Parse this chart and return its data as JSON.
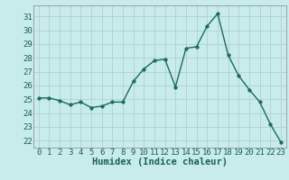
{
  "x": [
    0,
    1,
    2,
    3,
    4,
    5,
    6,
    7,
    8,
    9,
    10,
    11,
    12,
    13,
    14,
    15,
    16,
    17,
    18,
    19,
    20,
    21,
    22,
    23
  ],
  "y": [
    25.1,
    25.1,
    24.9,
    24.6,
    24.8,
    24.4,
    24.5,
    24.8,
    24.8,
    26.3,
    27.2,
    27.8,
    27.9,
    25.9,
    28.7,
    28.8,
    30.3,
    31.2,
    28.2,
    26.7,
    25.7,
    24.8,
    23.2,
    21.9
  ],
  "line_color": "#1a6b5a",
  "marker_color": "#1a6b5a",
  "bg_color": "#c8ebeb",
  "grid_color": "#b0d0d0",
  "xlabel": "Humidex (Indice chaleur)",
  "ylabel_ticks": [
    22,
    23,
    24,
    25,
    26,
    27,
    28,
    29,
    30,
    31
  ],
  "ylim": [
    21.5,
    31.8
  ],
  "xlim": [
    -0.5,
    23.5
  ],
  "xticks": [
    0,
    1,
    2,
    3,
    4,
    5,
    6,
    7,
    8,
    9,
    10,
    11,
    12,
    13,
    14,
    15,
    16,
    17,
    18,
    19,
    20,
    21,
    22,
    23
  ],
  "xlabel_fontsize": 7.5,
  "tick_fontsize": 6.5,
  "marker_size": 2.5,
  "line_width": 1.0
}
